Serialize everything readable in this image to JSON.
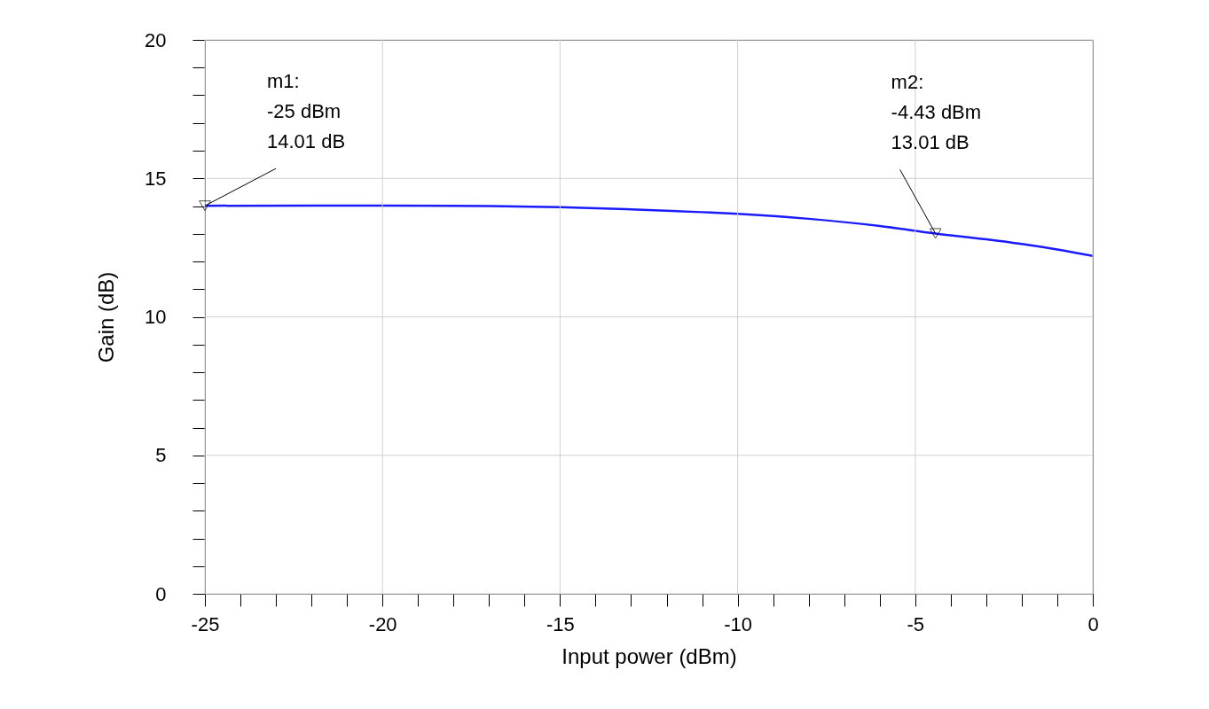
{
  "chart_data": {
    "type": "line",
    "xlabel": "Input power (dBm)",
    "ylabel": "Gain (dB)",
    "x": [
      -25,
      -22,
      -20,
      -17,
      -15,
      -13,
      -11,
      -10,
      -8,
      -6,
      -4.43,
      -3,
      -2,
      -1,
      0
    ],
    "series": [
      {
        "color": "#1a1aff",
        "values": [
          14.01,
          14.02,
          14.02,
          14.0,
          13.96,
          13.88,
          13.78,
          13.72,
          13.54,
          13.28,
          13.01,
          12.8,
          12.63,
          12.43,
          12.2
        ]
      }
    ],
    "xlim": [
      -25,
      0
    ],
    "ylim": [
      0,
      20
    ],
    "xticks": [
      -25,
      {
        "value": -24,
        "label": null
      },
      {
        "value": -23,
        "label": null
      },
      {
        "value": -22,
        "label": null
      },
      {
        "value": -21,
        "label": null
      },
      -20,
      {
        "value": -19,
        "label": null
      },
      {
        "value": -18,
        "label": null
      },
      {
        "value": -17,
        "label": null
      },
      {
        "value": -16,
        "label": null
      },
      -15,
      {
        "value": -14,
        "label": null
      },
      {
        "value": -13,
        "label": null
      },
      {
        "value": -12,
        "label": null
      },
      {
        "value": -11,
        "label": null
      },
      -10,
      {
        "value": -9,
        "label": null
      },
      {
        "value": -8,
        "label": null
      },
      {
        "value": -7,
        "label": null
      },
      {
        "value": -6,
        "label": null
      },
      -5,
      {
        "value": -4,
        "label": null
      },
      {
        "value": -3,
        "label": null
      },
      {
        "value": -2,
        "label": null
      },
      {
        "value": -1,
        "label": null
      },
      0
    ],
    "yticks": [
      0,
      {
        "value": 1,
        "label": null
      },
      {
        "value": 2,
        "label": null
      },
      {
        "value": 3,
        "label": null
      },
      {
        "value": 4,
        "label": null
      },
      5,
      {
        "value": 6,
        "label": null
      },
      {
        "value": 7,
        "label": null
      },
      {
        "value": 8,
        "label": null
      },
      {
        "value": 9,
        "label": null
      },
      10,
      {
        "value": 11,
        "label": null
      },
      {
        "value": 12,
        "label": null
      },
      {
        "value": 13,
        "label": null
      },
      {
        "value": 14,
        "label": null
      },
      15,
      {
        "value": 16,
        "label": null
      },
      {
        "value": 17,
        "label": null
      },
      {
        "value": 18,
        "label": null
      },
      {
        "value": 19,
        "label": null
      },
      20
    ],
    "grid": true,
    "line_style": "solid",
    "annotations": [
      {
        "text": "m1:\n-25 dBm\n14.01 dB",
        "x": -25,
        "y": 14.01
      },
      {
        "text": "m2:\n-4.43 dBm\n13.01 dB",
        "x": -4.43,
        "y": 13.01
      }
    ]
  }
}
